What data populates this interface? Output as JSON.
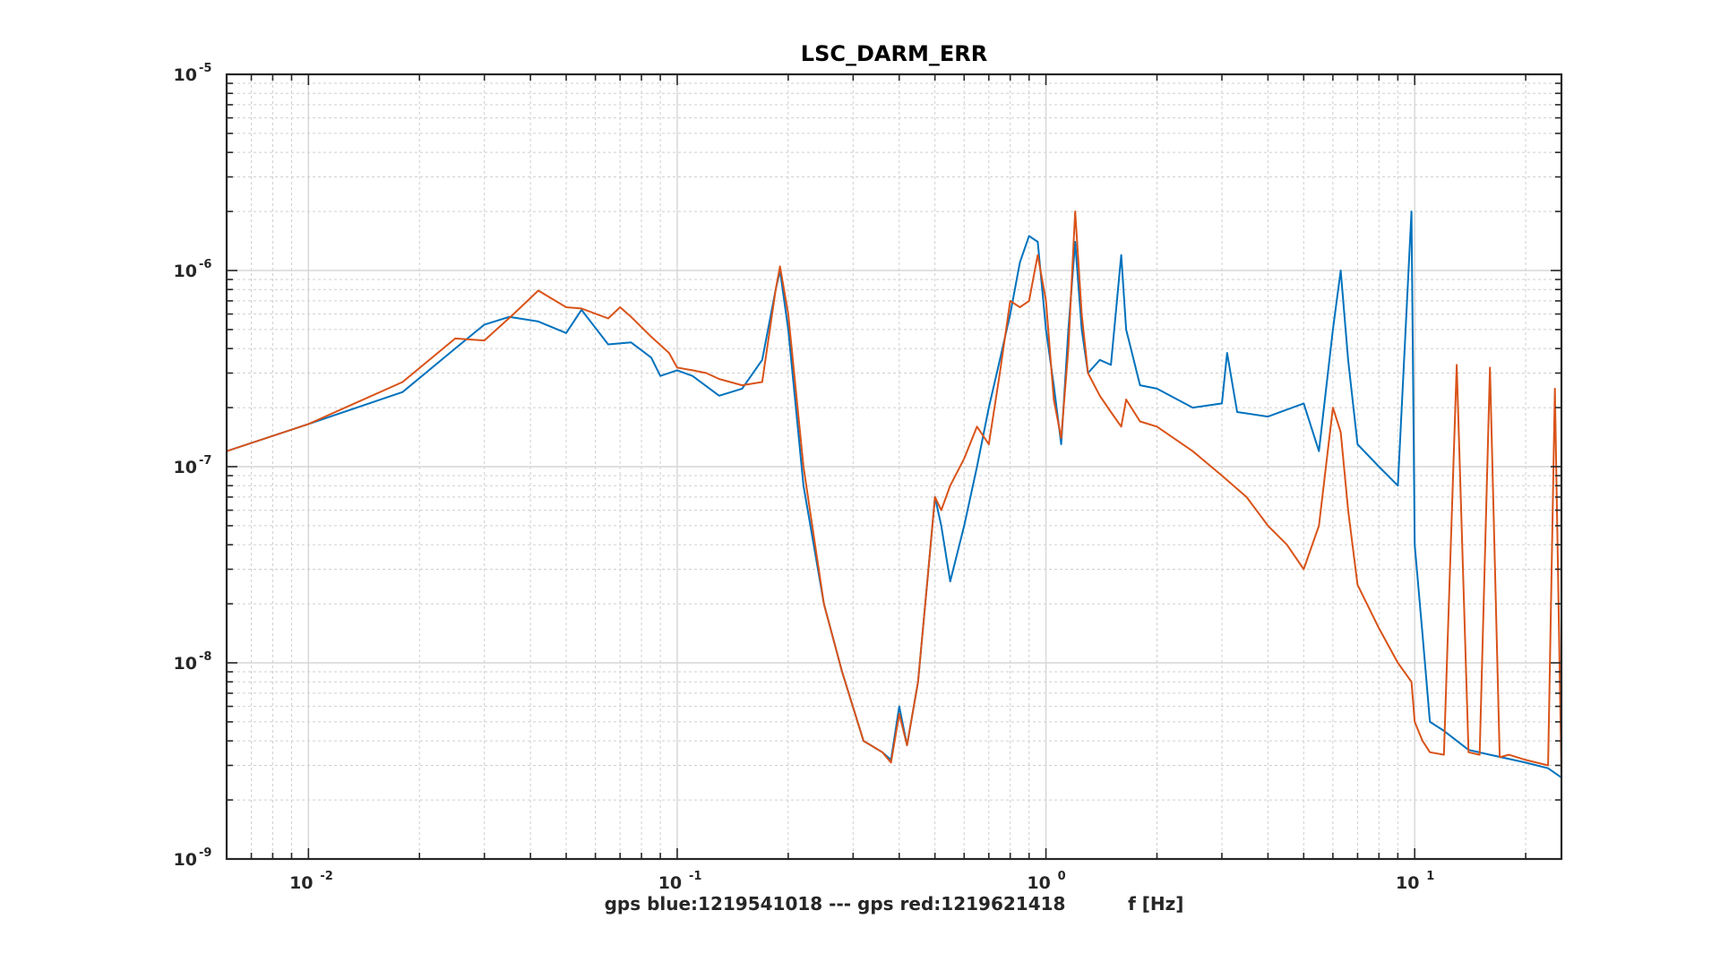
{
  "chart_data": {
    "type": "line",
    "title": "LSC_DARM_ERR",
    "xlabel": "gps blue:1219541018 --- gps red:1219621418          f [Hz]",
    "ylabel": "",
    "xscale": "log",
    "yscale": "log",
    "xlim": [
      0.006,
      25
    ],
    "ylim": [
      1e-09,
      1e-05
    ],
    "grid": true,
    "minor_grid": true,
    "legend": "none",
    "x_ticks": [
      {
        "value": 0.01,
        "base": "10",
        "exp": "-2"
      },
      {
        "value": 0.1,
        "base": "10",
        "exp": "-1"
      },
      {
        "value": 1,
        "base": "10",
        "exp": "0"
      },
      {
        "value": 10,
        "base": "10",
        "exp": "1"
      }
    ],
    "y_ticks": [
      {
        "value": 1e-09,
        "base": "10",
        "exp": "-9"
      },
      {
        "value": 1e-08,
        "base": "10",
        "exp": "-8"
      },
      {
        "value": 1e-07,
        "base": "10",
        "exp": "-7"
      },
      {
        "value": 1e-06,
        "base": "10",
        "exp": "-6"
      },
      {
        "value": 1e-05,
        "base": "10",
        "exp": "-5"
      }
    ],
    "series": [
      {
        "color": "#0072BD",
        "x": [
          0.006,
          0.01,
          0.018,
          0.025,
          0.03,
          0.035,
          0.042,
          0.05,
          0.055,
          0.065,
          0.075,
          0.085,
          0.09,
          0.1,
          0.11,
          0.13,
          0.15,
          0.17,
          0.185,
          0.19,
          0.2,
          0.22,
          0.25,
          0.28,
          0.32,
          0.36,
          0.38,
          0.4,
          0.42,
          0.45,
          0.48,
          0.5,
          0.52,
          0.55,
          0.6,
          0.65,
          0.7,
          0.75,
          0.8,
          0.85,
          0.9,
          0.95,
          1.0,
          1.05,
          1.1,
          1.15,
          1.2,
          1.25,
          1.3,
          1.4,
          1.5,
          1.6,
          1.65,
          1.8,
          2.0,
          2.5,
          3.0,
          3.1,
          3.3,
          4.0,
          5.0,
          5.5,
          6.0,
          6.3,
          6.6,
          7.0,
          8.0,
          9.0,
          9.8,
          10.0,
          10.5,
          11.0,
          12.0,
          14.0,
          16.0,
          20.0,
          23.0,
          25.0
        ],
        "y": [
          1.2e-07,
          1.65e-07,
          2.4e-07,
          4e-07,
          5.3e-07,
          5.8e-07,
          5.5e-07,
          4.8e-07,
          6.3e-07,
          4.2e-07,
          4.3e-07,
          3.6e-07,
          2.9e-07,
          3.1e-07,
          2.9e-07,
          2.3e-07,
          2.5e-07,
          3.5e-07,
          8e-07,
          1e-06,
          5e-07,
          8e-08,
          2e-08,
          9e-09,
          4e-09,
          3.5e-09,
          3.2e-09,
          6e-09,
          3.8e-09,
          8e-09,
          3e-08,
          7e-08,
          5e-08,
          2.6e-08,
          5e-08,
          1e-07,
          2e-07,
          3.5e-07,
          6e-07,
          1.1e-06,
          1.5e-06,
          1.4e-06,
          5e-07,
          2.6e-07,
          1.3e-07,
          5e-07,
          1.4e-06,
          5e-07,
          3e-07,
          3.5e-07,
          3.3e-07,
          1.2e-06,
          5e-07,
          2.6e-07,
          2.5e-07,
          2e-07,
          2.1e-07,
          3.8e-07,
          1.9e-07,
          1.8e-07,
          2.1e-07,
          1.2e-07,
          5e-07,
          1e-06,
          3.5e-07,
          1.3e-07,
          1e-07,
          8e-08,
          2e-06,
          4e-08,
          1.4e-08,
          5e-09,
          4.5e-09,
          3.6e-09,
          3.4e-09,
          3.1e-09,
          2.9e-09,
          2.6e-09
        ]
      },
      {
        "color": "#D95319",
        "x": [
          0.006,
          0.01,
          0.018,
          0.025,
          0.03,
          0.036,
          0.042,
          0.05,
          0.055,
          0.065,
          0.07,
          0.075,
          0.085,
          0.095,
          0.1,
          0.11,
          0.12,
          0.13,
          0.15,
          0.17,
          0.185,
          0.19,
          0.2,
          0.22,
          0.25,
          0.28,
          0.32,
          0.36,
          0.38,
          0.4,
          0.42,
          0.45,
          0.48,
          0.5,
          0.52,
          0.55,
          0.6,
          0.65,
          0.7,
          0.75,
          0.8,
          0.85,
          0.9,
          0.95,
          1.0,
          1.05,
          1.1,
          1.15,
          1.2,
          1.25,
          1.3,
          1.4,
          1.5,
          1.6,
          1.65,
          1.8,
          2.0,
          2.5,
          3.0,
          3.5,
          4.0,
          4.5,
          5.0,
          5.5,
          6.0,
          6.3,
          6.6,
          7.0,
          8.0,
          9.0,
          9.8,
          10.0,
          10.5,
          11.0,
          12.0,
          13.0,
          14.0,
          15.0,
          16.0,
          17.0,
          18.0,
          20.0,
          23.0,
          24.0,
          25.0
        ],
        "y": [
          1.2e-07,
          1.65e-07,
          2.7e-07,
          4.5e-07,
          4.4e-07,
          6e-07,
          7.9e-07,
          6.5e-07,
          6.4e-07,
          5.7e-07,
          6.5e-07,
          5.8e-07,
          4.6e-07,
          3.8e-07,
          3.2e-07,
          3.1e-07,
          3e-07,
          2.8e-07,
          2.6e-07,
          2.7e-07,
          8e-07,
          1.05e-06,
          6e-07,
          1e-07,
          2e-08,
          9e-09,
          4e-09,
          3.5e-09,
          3.1e-09,
          5.5e-09,
          3.8e-09,
          8e-09,
          3e-08,
          7e-08,
          6e-08,
          8e-08,
          1.1e-07,
          1.6e-07,
          1.3e-07,
          3e-07,
          7e-07,
          6.5e-07,
          7e-07,
          1.2e-06,
          7e-07,
          2.2e-07,
          1.4e-07,
          4e-07,
          2e-06,
          6e-07,
          3e-07,
          2.3e-07,
          1.9e-07,
          1.6e-07,
          2.2e-07,
          1.7e-07,
          1.6e-07,
          1.2e-07,
          9e-08,
          7e-08,
          5e-08,
          4e-08,
          3e-08,
          5e-08,
          2e-07,
          1.5e-07,
          6e-08,
          2.5e-08,
          1.5e-08,
          1e-08,
          8e-09,
          5e-09,
          4e-09,
          3.5e-09,
          3.4e-09,
          3.3e-07,
          3.5e-09,
          3.4e-09,
          3.2e-07,
          3.3e-09,
          3.4e-09,
          3.2e-09,
          3e-09,
          2.5e-07,
          2.7e-09
        ]
      }
    ]
  }
}
